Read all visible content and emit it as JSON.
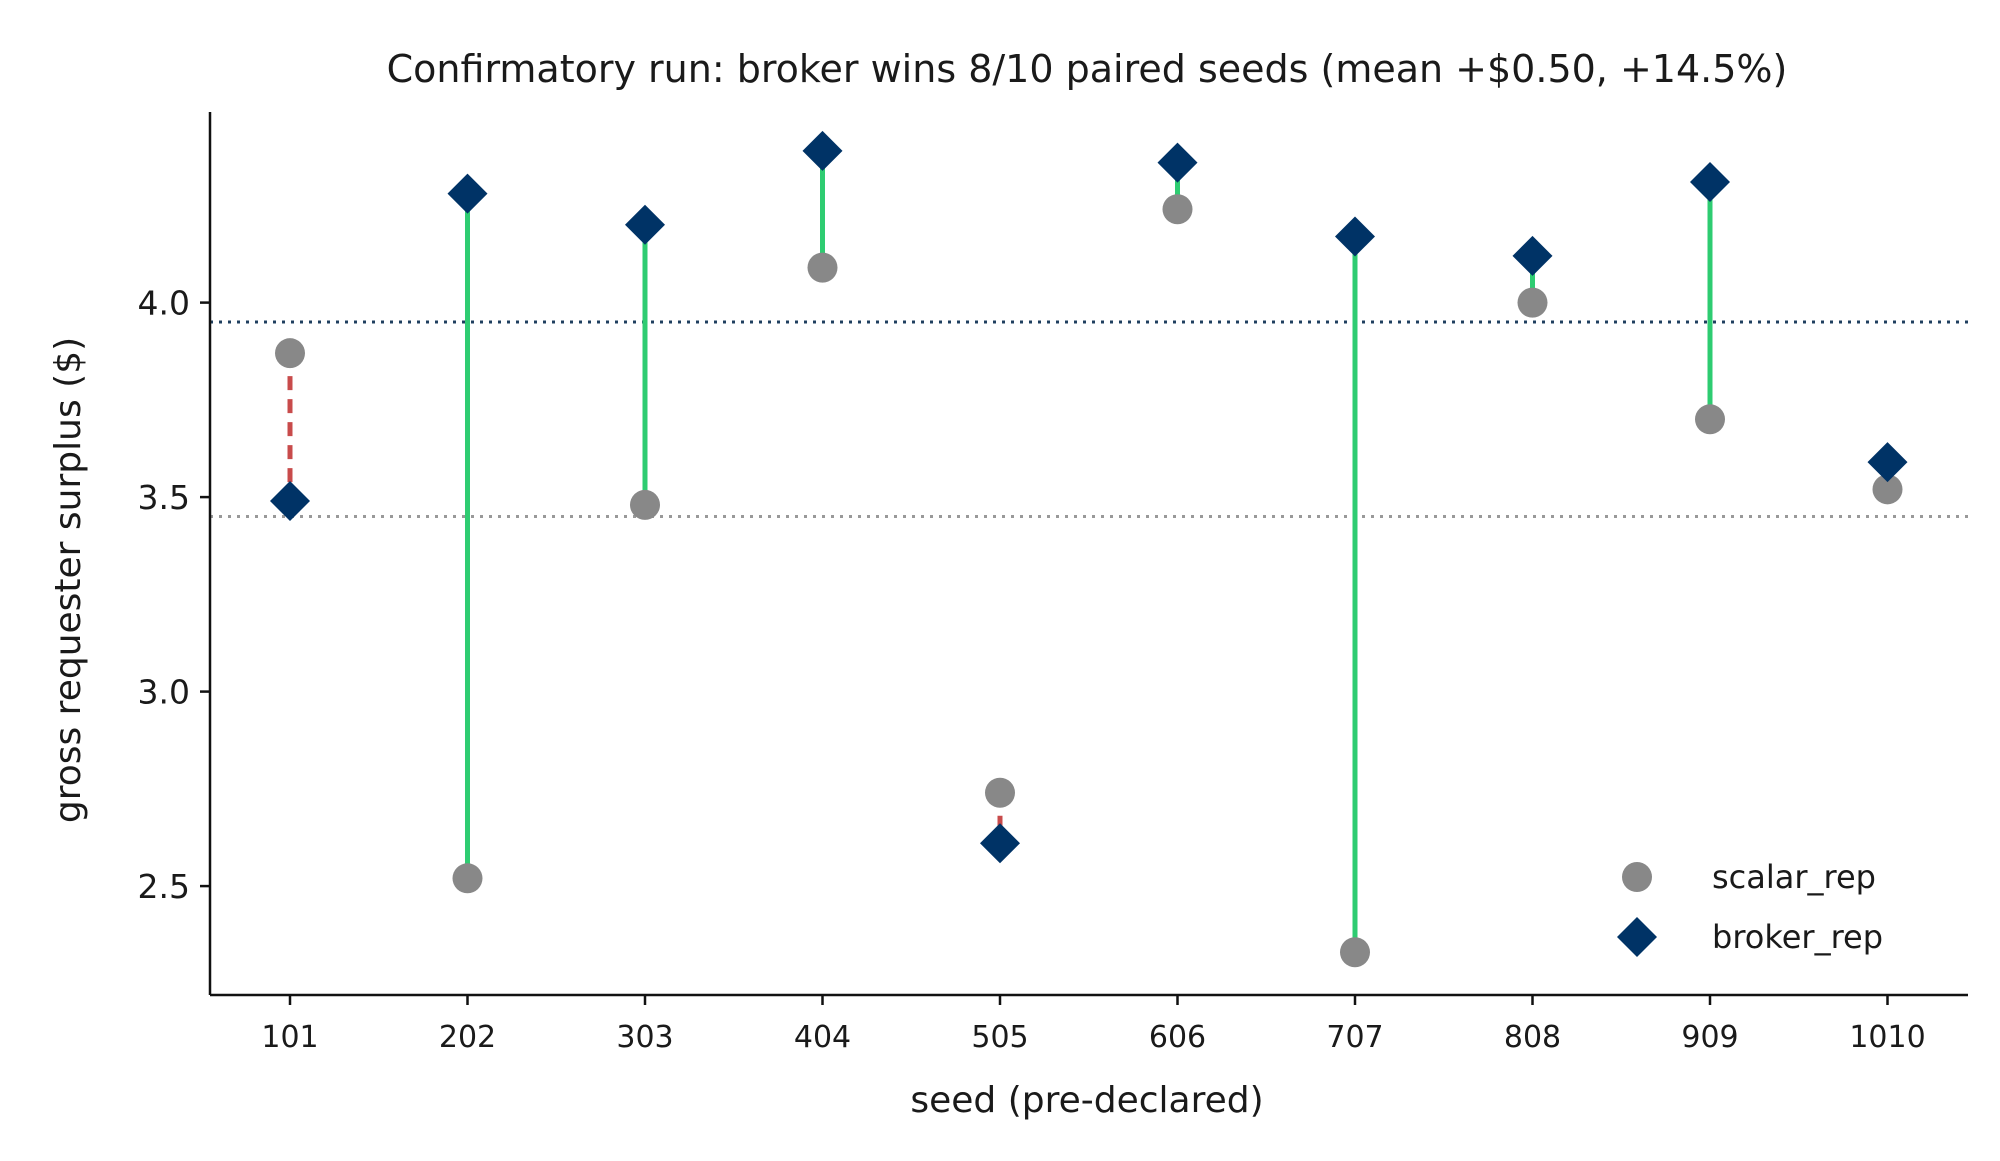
{
  "chart_data": {
    "type": "scatter",
    "title": "Confirmatory run: broker wins 8/10 paired seeds (mean +$0.50, +14.5%)",
    "xlabel": "seed (pre-declared)",
    "ylabel": "gross requester surplus ($)",
    "categories": [
      "101",
      "202",
      "303",
      "404",
      "505",
      "606",
      "707",
      "808",
      "909",
      "1010"
    ],
    "series": [
      {
        "name": "scalar_rep",
        "marker": "circle",
        "color": "#888888",
        "values": [
          3.87,
          2.52,
          3.48,
          4.09,
          2.74,
          4.24,
          2.33,
          4.0,
          3.7,
          3.52
        ]
      },
      {
        "name": "broker_rep",
        "marker": "diamond",
        "color": "#003366",
        "values": [
          3.49,
          4.28,
          4.2,
          4.39,
          2.61,
          4.36,
          4.17,
          4.12,
          4.31,
          3.59
        ]
      }
    ],
    "reference_lines": [
      {
        "series": "broker_rep",
        "value": 3.95,
        "style": "dotted",
        "color": "#1f3f5f"
      },
      {
        "series": "scalar_rep",
        "value": 3.45,
        "style": "dotted",
        "color": "#999999"
      }
    ],
    "connectors": {
      "win_color": "#2ecc71",
      "loss_color": "#c84b4b"
    },
    "yticks": [
      "2.5",
      "3.0",
      "3.5",
      "4.0"
    ],
    "ylim": [
      2.22,
      4.49
    ],
    "grid": false,
    "legend": "bottom-right"
  }
}
